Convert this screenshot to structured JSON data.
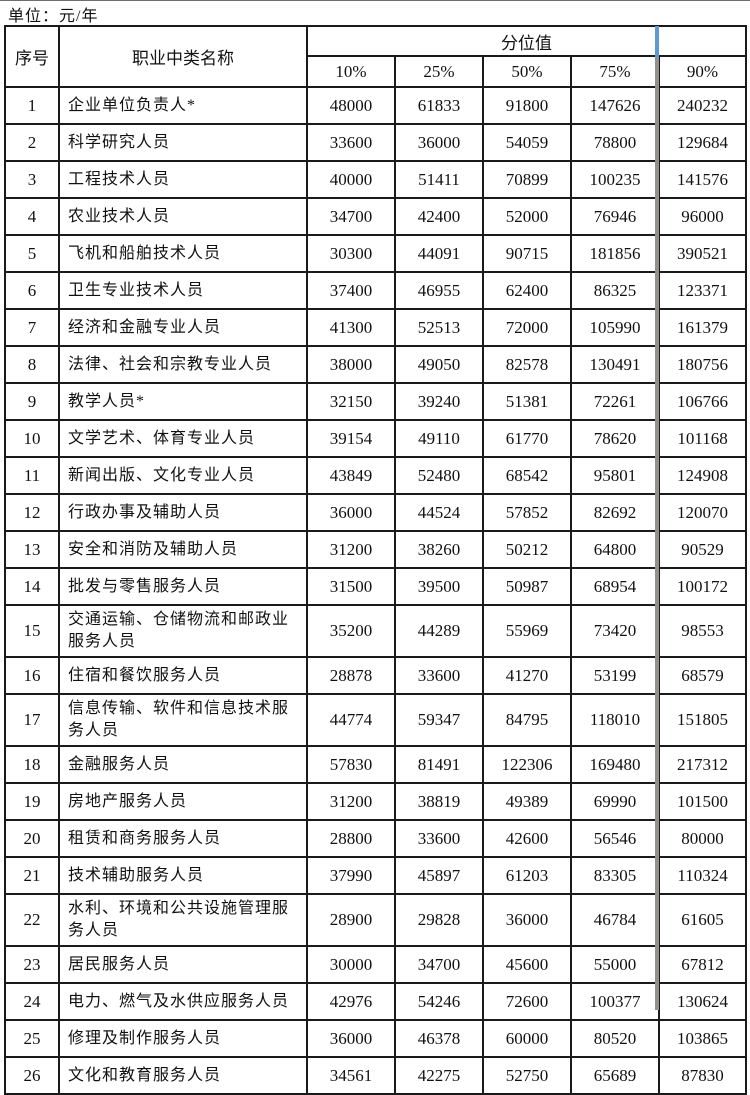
{
  "unit_label": "单位：元/年",
  "table": {
    "headers": {
      "serial": "序号",
      "occupation": "职业中类名称",
      "percentile_group": "分位值",
      "percentiles": [
        "10%",
        "25%",
        "50%",
        "75%",
        "90%"
      ]
    },
    "rows": [
      {
        "no": "1",
        "name": "企业单位负责人*",
        "values": [
          "48000",
          "61833",
          "91800",
          "147626",
          "240232"
        ]
      },
      {
        "no": "2",
        "name": "科学研究人员",
        "values": [
          "33600",
          "36000",
          "54059",
          "78800",
          "129684"
        ]
      },
      {
        "no": "3",
        "name": "工程技术人员",
        "values": [
          "40000",
          "51411",
          "70899",
          "100235",
          "141576"
        ]
      },
      {
        "no": "4",
        "name": "农业技术人员",
        "values": [
          "34700",
          "42400",
          "52000",
          "76946",
          "96000"
        ]
      },
      {
        "no": "5",
        "name": "飞机和船舶技术人员",
        "values": [
          "30300",
          "44091",
          "90715",
          "181856",
          "390521"
        ]
      },
      {
        "no": "6",
        "name": "卫生专业技术人员",
        "values": [
          "37400",
          "46955",
          "62400",
          "86325",
          "123371"
        ]
      },
      {
        "no": "7",
        "name": "经济和金融专业人员",
        "values": [
          "41300",
          "52513",
          "72000",
          "105990",
          "161379"
        ]
      },
      {
        "no": "8",
        "name": "法律、社会和宗教专业人员",
        "values": [
          "38000",
          "49050",
          "82578",
          "130491",
          "180756"
        ]
      },
      {
        "no": "9",
        "name": "教学人员*",
        "values": [
          "32150",
          "39240",
          "51381",
          "72261",
          "106766"
        ]
      },
      {
        "no": "10",
        "name": "文学艺术、体育专业人员",
        "values": [
          "39154",
          "49110",
          "61770",
          "78620",
          "101168"
        ]
      },
      {
        "no": "11",
        "name": "新闻出版、文化专业人员",
        "values": [
          "43849",
          "52480",
          "68542",
          "95801",
          "124908"
        ]
      },
      {
        "no": "12",
        "name": "行政办事及辅助人员",
        "values": [
          "36000",
          "44524",
          "57852",
          "82692",
          "120070"
        ]
      },
      {
        "no": "13",
        "name": "安全和消防及辅助人员",
        "values": [
          "31200",
          "38260",
          "50212",
          "64800",
          "90529"
        ]
      },
      {
        "no": "14",
        "name": "批发与零售服务人员",
        "values": [
          "31500",
          "39500",
          "50987",
          "68954",
          "100172"
        ]
      },
      {
        "no": "15",
        "name": "交通运输、仓储物流和邮政业服务人员",
        "values": [
          "35200",
          "44289",
          "55969",
          "73420",
          "98553"
        ]
      },
      {
        "no": "16",
        "name": "住宿和餐饮服务人员",
        "values": [
          "28878",
          "33600",
          "41270",
          "53199",
          "68579"
        ]
      },
      {
        "no": "17",
        "name": "信息传输、软件和信息技术服务人员",
        "values": [
          "44774",
          "59347",
          "84795",
          "118010",
          "151805"
        ]
      },
      {
        "no": "18",
        "name": "金融服务人员",
        "values": [
          "57830",
          "81491",
          "122306",
          "169480",
          "217312"
        ]
      },
      {
        "no": "19",
        "name": "房地产服务人员",
        "values": [
          "31200",
          "38819",
          "49389",
          "69990",
          "101500"
        ]
      },
      {
        "no": "20",
        "name": "租赁和商务服务人员",
        "values": [
          "28800",
          "33600",
          "42600",
          "56546",
          "80000"
        ]
      },
      {
        "no": "21",
        "name": "技术辅助服务人员",
        "values": [
          "37990",
          "45897",
          "61203",
          "83305",
          "110324"
        ]
      },
      {
        "no": "22",
        "name": "水利、环境和公共设施管理服务人员",
        "values": [
          "28900",
          "29828",
          "36000",
          "46784",
          "61605"
        ]
      },
      {
        "no": "23",
        "name": "居民服务人员",
        "values": [
          "30000",
          "34700",
          "45600",
          "55000",
          "67812"
        ]
      },
      {
        "no": "24",
        "name": "电力、燃气及水供应服务人员",
        "values": [
          "42976",
          "54246",
          "72600",
          "100377",
          "130624"
        ]
      },
      {
        "no": "25",
        "name": "修理及制作服务人员",
        "values": [
          "36000",
          "46378",
          "60000",
          "80520",
          "103865"
        ]
      },
      {
        "no": "26",
        "name": "文化和教育服务人员",
        "values": [
          "34561",
          "42275",
          "52750",
          "65689",
          "87830"
        ]
      }
    ]
  },
  "overlay": {
    "blue_color": "#5b9bd5",
    "gray_color": "#94908a"
  }
}
